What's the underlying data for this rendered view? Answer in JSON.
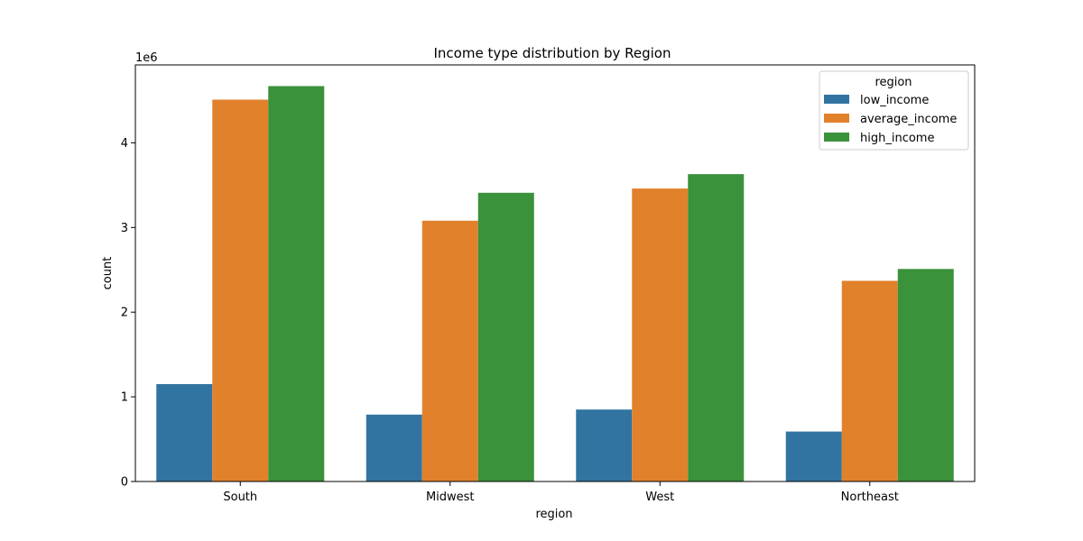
{
  "chart_data": {
    "type": "bar",
    "title": "Income type distribution by Region",
    "xlabel": "region",
    "ylabel": "count",
    "y_offset_label": "1e6",
    "categories": [
      "South",
      "Midwest",
      "West",
      "Northeast"
    ],
    "ylim": [
      0,
      4.92
    ],
    "yticks": [
      0,
      1,
      2,
      3,
      4
    ],
    "legend": {
      "title": "region",
      "position": "upper-right"
    },
    "series": [
      {
        "name": "low_income",
        "color": "#3274a1",
        "values": [
          1.15,
          0.79,
          0.85,
          0.59
        ]
      },
      {
        "name": "average_income",
        "color": "#e1812c",
        "values": [
          4.51,
          3.08,
          3.46,
          2.37
        ]
      },
      {
        "name": "high_income",
        "color": "#3a923a",
        "values": [
          4.67,
          3.41,
          3.63,
          2.51
        ]
      }
    ]
  }
}
